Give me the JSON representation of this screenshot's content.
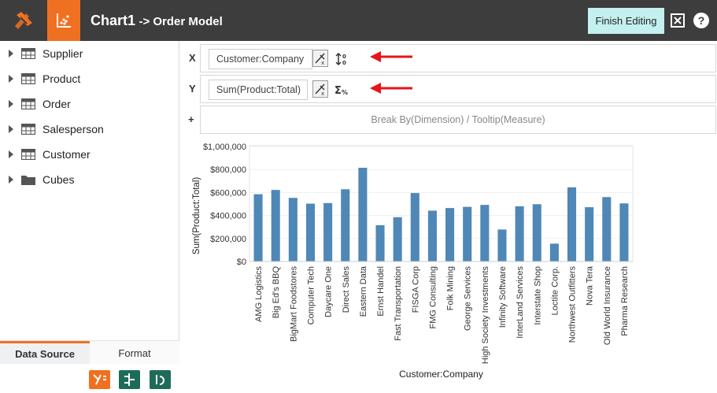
{
  "header": {
    "title": "Chart1",
    "subtitle": "-> Order Model",
    "finish_label": "Finish Editing",
    "help_label": "?"
  },
  "tree": [
    {
      "label": "Supplier",
      "icon": "table-icon"
    },
    {
      "label": "Product",
      "icon": "table-icon"
    },
    {
      "label": "Order",
      "icon": "table-icon"
    },
    {
      "label": "Salesperson",
      "icon": "table-icon"
    },
    {
      "label": "Customer",
      "icon": "table-icon"
    },
    {
      "label": "Cubes",
      "icon": "folder-icon"
    }
  ],
  "tabs": {
    "data_source": "Data Source",
    "format": "Format"
  },
  "shelves": {
    "x_label": "X",
    "x_field": "Customer:Company",
    "y_label": "Y",
    "y_field": "Sum(Product:Total)",
    "plus_label": "+",
    "breakby_placeholder": "Break By(Dimension) / Tooltip(Measure)"
  },
  "colors": {
    "accent": "#f07022",
    "topbar": "#3d3d3d",
    "bar": "#4f87b7",
    "finish_button": "#c4f0ef",
    "annotation_arrow": "#e8141a"
  },
  "chart_data": {
    "type": "bar",
    "xlabel": "Customer:Company",
    "ylabel": "Sum(Product:Total)",
    "ylim": [
      0,
      1000000
    ],
    "yticks": [
      "$0",
      "$200,000",
      "$400,000",
      "$600,000",
      "$800,000",
      "$1,000,000"
    ],
    "categories": [
      "AMG Logistics",
      "Big Ed's BBQ",
      "BigMart Foodstores",
      "Computer Tech",
      "Daycare One",
      "Direct Sales",
      "Eastern Data",
      "Ernst Handel",
      "Fast Transportation",
      "FISGA Corp",
      "FMG Consulting",
      "Folk Mining",
      "George Services",
      "High Society Investments",
      "Infinity Software",
      "InterLand Services",
      "Interstate Shop",
      "Loctite Corp.",
      "Northwest Outfitters",
      "Nova Tera",
      "Old World Insurance",
      "Pharma Research"
    ],
    "values": [
      585000,
      622000,
      553000,
      503000,
      508000,
      628000,
      815000,
      315000,
      385000,
      595000,
      442000,
      465000,
      475000,
      492000,
      278000,
      480000,
      498000,
      155000,
      645000,
      472000,
      560000,
      505000
    ]
  }
}
